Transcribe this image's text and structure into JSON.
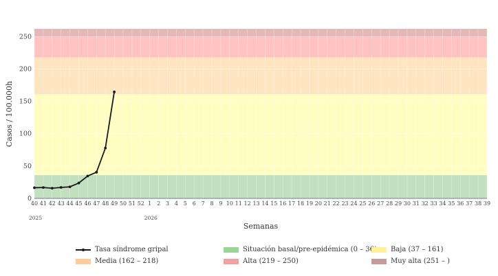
{
  "chart_data": {
    "type": "line",
    "title": "",
    "xlabel": "Semanas",
    "ylabel": "Casos / 100.000h",
    "ylim": [
      0,
      262
    ],
    "yticks": [
      0,
      50,
      100,
      150,
      200,
      250
    ],
    "weeks": [
      "40",
      "41",
      "42",
      "43",
      "44",
      "45",
      "46",
      "47",
      "48",
      "49",
      "50",
      "51",
      "52",
      "1",
      "2",
      "3",
      "4",
      "5",
      "6",
      "7",
      "8",
      "9",
      "10",
      "11",
      "12",
      "13",
      "14",
      "15",
      "16",
      "17",
      "18",
      "19",
      "20",
      "21",
      "22",
      "23",
      "24",
      "25",
      "26",
      "27",
      "28",
      "29",
      "30",
      "31",
      "32",
      "33",
      "34",
      "35",
      "36",
      "37",
      "38",
      "39"
    ],
    "year_labels": [
      {
        "label": "2025",
        "week": "40"
      },
      {
        "label": "2026",
        "week": "1"
      }
    ],
    "series": [
      {
        "name": "Tasa síndrome gripal",
        "color": "#1a1a1a",
        "values": [
          16.5,
          16.8,
          15.8,
          17.0,
          17.9,
          23.8,
          34.6,
          40.5,
          77.8,
          164.6
        ]
      }
    ],
    "thresholds": [
      {
        "name": "Situación basal/pre-epidémica (0 – 36)",
        "from": 0,
        "to": 36,
        "color": "#c2dfc0",
        "legend_color": "#9ad49a"
      },
      {
        "name": "Baja (37 – 161)",
        "from": 36,
        "to": 161,
        "color": "#fffdc2",
        "legend_color": "#fff29a"
      },
      {
        "name": "Media (162 – 218)",
        "from": 161,
        "to": 218,
        "color": "#ffe4c2",
        "legend_color": "#ffcc99"
      },
      {
        "name": "Alta (219 – 250)",
        "from": 218,
        "to": 250,
        "color": "#ffc2c2",
        "legend_color": "#f4a0a0"
      },
      {
        "name": "Muy alta (251 – )",
        "from": 250,
        "to": 262,
        "color": "#e4b8b8",
        "legend_color": "#c89a9a"
      }
    ]
  }
}
